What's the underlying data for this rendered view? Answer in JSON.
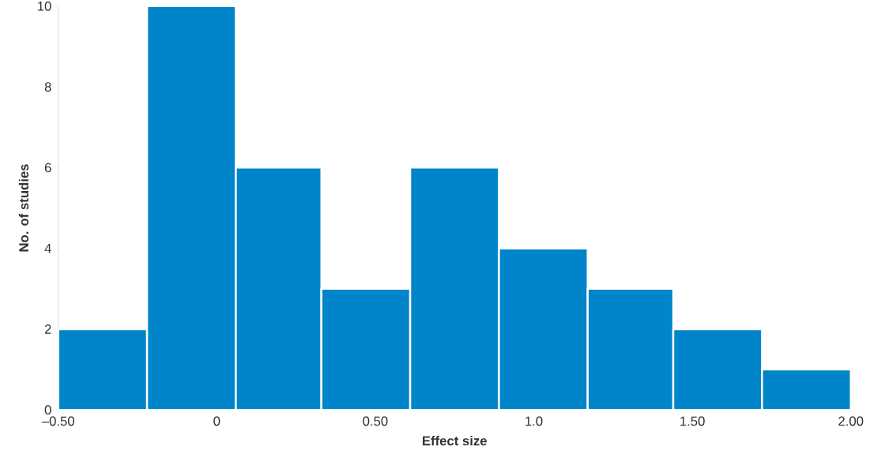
{
  "chart_data": {
    "type": "histogram",
    "xlabel": "Effect size",
    "ylabel": "No. of studies",
    "bins": [
      -0.5,
      -0.22,
      0.06,
      0.33,
      0.61,
      0.89,
      1.17,
      1.44,
      1.72,
      2.0
    ],
    "values": [
      2,
      10,
      6,
      3,
      6,
      4,
      3,
      2,
      1
    ],
    "color": "#0085ca",
    "xlim": [
      -0.5,
      2.0
    ],
    "ylim": [
      0,
      10
    ],
    "xticks": [
      {
        "value": -0.5,
        "label": "–0.50"
      },
      0,
      {
        "value": 0.5,
        "label": "0.50"
      },
      {
        "value": 1.0,
        "label": "1.0"
      },
      {
        "value": 1.5,
        "label": "1.50"
      },
      {
        "value": 2.0,
        "label": "2.00"
      }
    ],
    "yticks": [
      0,
      2,
      4,
      6,
      8,
      10
    ],
    "grid": false
  }
}
